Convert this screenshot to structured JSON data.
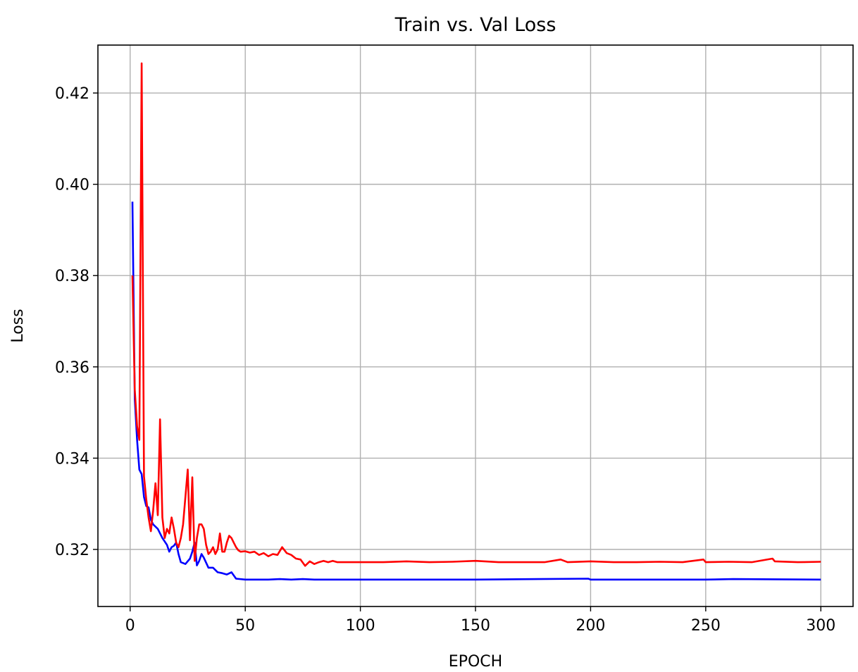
{
  "chart_data": {
    "type": "line",
    "title": "Train vs. Val Loss",
    "xlabel": "EPOCH",
    "ylabel": "Loss",
    "xlim": [
      -14,
      314
    ],
    "ylim": [
      0.3075,
      0.4305
    ],
    "xticks": [
      0,
      50,
      100,
      150,
      200,
      250,
      300
    ],
    "yticks": [
      0.32,
      0.34,
      0.36,
      0.38,
      0.4,
      0.42
    ],
    "xtick_labels": [
      "0",
      "50",
      "100",
      "150",
      "200",
      "250",
      "300"
    ],
    "ytick_labels": [
      "0.32",
      "0.34",
      "0.36",
      "0.38",
      "0.40",
      "0.42"
    ],
    "grid": true,
    "legend": "none",
    "series": [
      {
        "color": "#0000ff",
        "x": [
          1,
          2,
          3,
          4,
          5,
          6,
          7,
          8,
          9,
          10,
          12,
          14,
          16,
          17,
          18,
          19,
          20,
          21,
          22,
          24,
          26,
          27,
          28,
          29,
          30,
          31,
          32,
          34,
          36,
          38,
          40,
          42,
          44,
          46,
          50,
          60,
          65,
          70,
          75,
          80,
          100,
          150,
          199,
          200,
          250,
          262,
          300
        ],
        "y": [
          0.3962,
          0.353,
          0.344,
          0.3375,
          0.3365,
          0.3315,
          0.3295,
          0.3292,
          0.3265,
          0.3255,
          0.3245,
          0.3225,
          0.321,
          0.3195,
          0.3205,
          0.3208,
          0.3215,
          0.319,
          0.3172,
          0.3168,
          0.318,
          0.3195,
          0.3215,
          0.3165,
          0.3175,
          0.319,
          0.3182,
          0.316,
          0.316,
          0.315,
          0.3148,
          0.3145,
          0.315,
          0.3136,
          0.3134,
          0.3134,
          0.3135,
          0.3134,
          0.3135,
          0.3134,
          0.3134,
          0.3134,
          0.3136,
          0.3134,
          0.3134,
          0.3135,
          0.3134
        ]
      },
      {
        "color": "#ff0000",
        "x": [
          1,
          2,
          3,
          4,
          5,
          6,
          7,
          8,
          9,
          10,
          11,
          12,
          13,
          14,
          15,
          16,
          17,
          18,
          19,
          20,
          21,
          22,
          23,
          24,
          25,
          26,
          27,
          28,
          29,
          30,
          31,
          32,
          33,
          34,
          35,
          36,
          37,
          38,
          39,
          40,
          41,
          42,
          43,
          44,
          45,
          46,
          47,
          48,
          50,
          52,
          54,
          56,
          58,
          60,
          62,
          64,
          66,
          68,
          70,
          72,
          74,
          76,
          78,
          80,
          82,
          84,
          86,
          88,
          90,
          95,
          100,
          110,
          120,
          130,
          140,
          150,
          160,
          170,
          180,
          187,
          190,
          200,
          210,
          220,
          230,
          240,
          249,
          250,
          260,
          270,
          279,
          280,
          290,
          300
        ],
        "y": [
          0.38,
          0.355,
          0.347,
          0.344,
          0.4265,
          0.336,
          0.331,
          0.327,
          0.324,
          0.3285,
          0.3345,
          0.3275,
          0.3485,
          0.327,
          0.3225,
          0.3245,
          0.3235,
          0.327,
          0.3245,
          0.3215,
          0.3205,
          0.3225,
          0.3255,
          0.3315,
          0.3375,
          0.322,
          0.3358,
          0.3175,
          0.3225,
          0.3255,
          0.3255,
          0.3245,
          0.321,
          0.319,
          0.3195,
          0.3205,
          0.319,
          0.32,
          0.3235,
          0.3195,
          0.3195,
          0.3215,
          0.323,
          0.3225,
          0.3215,
          0.3205,
          0.3198,
          0.3195,
          0.3196,
          0.3193,
          0.3195,
          0.3188,
          0.3192,
          0.3185,
          0.319,
          0.3188,
          0.3205,
          0.3192,
          0.3188,
          0.318,
          0.3178,
          0.3164,
          0.3174,
          0.3168,
          0.3172,
          0.3175,
          0.3172,
          0.3175,
          0.3172,
          0.3172,
          0.3172,
          0.3172,
          0.3174,
          0.3172,
          0.3173,
          0.3175,
          0.3172,
          0.3172,
          0.3172,
          0.3178,
          0.3172,
          0.3174,
          0.3172,
          0.3172,
          0.3173,
          0.3172,
          0.3178,
          0.3172,
          0.3173,
          0.3172,
          0.318,
          0.3174,
          0.3172,
          0.3173
        ]
      }
    ]
  }
}
